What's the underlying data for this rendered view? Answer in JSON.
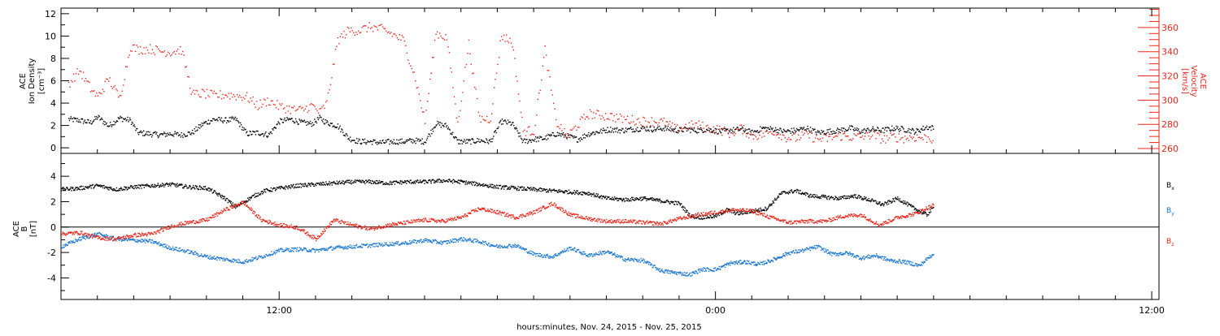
{
  "x_axis": {
    "label": "hours:minutes, Nov. 24, 2015 - Nov. 25, 2015",
    "ticks": [
      {
        "hour": 12,
        "label": "12:00"
      },
      {
        "hour": 24,
        "label": "0:00"
      },
      {
        "hour": 36,
        "label": "12:00"
      }
    ],
    "range_hours": [
      6,
      36.2
    ]
  },
  "colors": {
    "black": "#000000",
    "red": "#e8261a",
    "blue": "#1874cd"
  },
  "chart_data": [
    {
      "type": "scatter",
      "panel": "top",
      "left_axis": {
        "label_lines": [
          "ACE",
          "Ion Density",
          "[cm⁻³]"
        ],
        "ylim": [
          -0.5,
          12.5
        ],
        "ticks": [
          0,
          2,
          4,
          6,
          8,
          10,
          12
        ]
      },
      "right_axis": {
        "label_lines": [
          "ACE",
          "Velocity",
          "[km/s]"
        ],
        "ylim": [
          256,
          376
        ],
        "ticks": [
          260,
          280,
          300,
          320,
          340,
          360
        ]
      },
      "series": [
        {
          "key": "density",
          "axis": "left",
          "color": "#000000",
          "x_hours": [
            6.2,
            6.5,
            6.8,
            7.0,
            7.3,
            7.6,
            7.9,
            8.1,
            8.4,
            8.7,
            9.0,
            9.3,
            9.6,
            9.9,
            10.2,
            10.5,
            10.8,
            11.1,
            11.4,
            11.7,
            12.0,
            12.3,
            12.6,
            12.9,
            13.1,
            13.3,
            13.6,
            13.9,
            14.2,
            14.5,
            14.8,
            15.1,
            15.4,
            15.7,
            16.0,
            16.3,
            16.6,
            16.9,
            17.2,
            17.5,
            17.8,
            18.1,
            18.4,
            18.7,
            19.0,
            19.3,
            19.6,
            19.9,
            20.2,
            20.5,
            20.8,
            21.1,
            21.4,
            21.7,
            22.0,
            22.3,
            22.6,
            22.9,
            23.2,
            23.5,
            23.8,
            24.1,
            24.4,
            24.7,
            25.0,
            25.3,
            25.6,
            25.9,
            26.2,
            26.5,
            26.8,
            27.1,
            27.4,
            27.7,
            28.0,
            28.3,
            28.6,
            28.9,
            29.2,
            29.5,
            29.8,
            30.0
          ],
          "values": [
            2.6,
            2.5,
            2.3,
            2.8,
            2.0,
            2.7,
            2.5,
            1.4,
            1.3,
            1.2,
            1.3,
            1.2,
            1.4,
            2.2,
            2.6,
            2.5,
            2.6,
            1.3,
            1.4,
            1.2,
            2.4,
            2.6,
            2.3,
            2.2,
            2.7,
            2.3,
            2.0,
            0.9,
            0.6,
            0.6,
            0.5,
            0.6,
            0.6,
            0.7,
            0.6,
            2.2,
            2.0,
            0.6,
            0.6,
            0.7,
            0.6,
            2.4,
            2.2,
            0.6,
            0.8,
            0.9,
            1.3,
            1.1,
            0.8,
            1.3,
            1.5,
            1.7,
            1.6,
            1.7,
            1.8,
            1.7,
            1.8,
            1.6,
            1.7,
            1.6,
            1.7,
            1.5,
            1.6,
            1.7,
            1.4,
            1.8,
            1.7,
            1.5,
            1.6,
            1.8,
            1.4,
            1.5,
            1.6,
            1.8,
            1.5,
            1.7,
            1.6,
            1.8,
            1.7,
            1.5,
            1.9,
            1.8
          ]
        },
        {
          "key": "velocity",
          "axis": "right",
          "color": "#e8261a",
          "x_hours": [
            6.2,
            6.5,
            6.8,
            7.0,
            7.3,
            7.6,
            7.9,
            8.1,
            8.4,
            8.7,
            9.0,
            9.3,
            9.6,
            9.9,
            10.2,
            10.5,
            10.8,
            11.1,
            11.4,
            11.7,
            12.0,
            12.3,
            12.6,
            12.9,
            13.1,
            13.3,
            13.6,
            13.9,
            14.2,
            14.5,
            14.8,
            15.1,
            15.4,
            15.7,
            16.0,
            16.3,
            16.6,
            16.9,
            17.2,
            17.5,
            17.8,
            18.1,
            18.4,
            18.7,
            19.0,
            19.3,
            19.6,
            19.9,
            20.2,
            20.5,
            20.8,
            21.1,
            21.4,
            21.7,
            22.0,
            22.3,
            22.6,
            22.9,
            23.2,
            23.5,
            23.8,
            24.1,
            24.4,
            24.7,
            25.0,
            25.3,
            25.6,
            25.9,
            26.2,
            26.5,
            26.8,
            27.1,
            27.4,
            27.7,
            28.0,
            28.3,
            28.6,
            28.9,
            29.2,
            29.5,
            29.8,
            30.0
          ],
          "values": [
            314,
            325,
            310,
            303,
            318,
            302,
            345,
            342,
            343,
            341,
            340,
            342,
            305,
            306,
            304,
            305,
            304,
            303,
            296,
            300,
            295,
            293,
            292,
            296,
            290,
            298,
            350,
            358,
            358,
            361,
            359,
            355,
            350,
            322,
            283,
            356,
            352,
            280,
            347,
            285,
            285,
            354,
            348,
            275,
            275,
            342,
            283,
            270,
            280,
            289,
            288,
            287,
            285,
            284,
            283,
            283,
            282,
            276,
            279,
            280,
            277,
            276,
            273,
            277,
            271,
            272,
            275,
            270,
            269,
            272,
            268,
            269,
            271,
            270,
            270,
            272,
            268,
            270,
            269,
            270,
            269,
            268
          ]
        }
      ]
    },
    {
      "type": "scatter",
      "panel": "bottom",
      "left_axis": {
        "label_lines": [
          "ACE",
          "B",
          "[nT]"
        ],
        "ylim": [
          -5.7,
          5.8
        ],
        "ticks": [
          -4,
          -2,
          0,
          2,
          4
        ]
      },
      "legend": [
        "Bx",
        "By",
        "Bz"
      ],
      "series": [
        {
          "key": "bx",
          "name": "Bx",
          "color": "#000000",
          "x_hours": [
            6.0,
            6.5,
            7.0,
            7.5,
            8.0,
            8.5,
            9.0,
            9.5,
            10.0,
            10.5,
            10.8,
            11.0,
            11.3,
            11.6,
            12.0,
            12.5,
            13.0,
            13.5,
            14.0,
            14.5,
            15.0,
            15.5,
            16.0,
            16.5,
            17.0,
            17.5,
            18.0,
            18.5,
            19.0,
            19.5,
            20.0,
            20.5,
            21.0,
            21.5,
            22.0,
            22.5,
            23.0,
            23.3,
            23.6,
            24.0,
            24.3,
            24.6,
            25.0,
            25.4,
            25.8,
            26.2,
            26.6,
            27.0,
            27.4,
            27.8,
            28.2,
            28.6,
            29.0,
            29.4,
            29.8,
            30.0
          ],
          "values": [
            3.0,
            3.1,
            3.3,
            3.0,
            3.2,
            3.3,
            3.4,
            3.2,
            3.1,
            2.3,
            1.6,
            2.0,
            2.5,
            2.9,
            3.1,
            3.3,
            3.4,
            3.5,
            3.6,
            3.6,
            3.5,
            3.6,
            3.6,
            3.7,
            3.6,
            3.4,
            3.2,
            3.1,
            3.0,
            2.9,
            2.8,
            2.7,
            2.3,
            2.2,
            2.3,
            2.1,
            1.9,
            0.9,
            0.8,
            0.9,
            1.4,
            1.1,
            1.3,
            1.5,
            2.7,
            2.9,
            2.5,
            2.4,
            2.3,
            2.5,
            2.2,
            1.8,
            2.3,
            1.6,
            1.0,
            1.6
          ]
        },
        {
          "key": "by",
          "name": "By",
          "color": "#1874cd",
          "x_hours": [
            6.0,
            6.5,
            7.0,
            7.5,
            8.0,
            8.5,
            9.0,
            9.5,
            10.0,
            10.5,
            11.0,
            11.5,
            12.0,
            12.5,
            13.0,
            13.5,
            14.0,
            14.5,
            15.0,
            15.5,
            16.0,
            16.5,
            17.0,
            17.5,
            18.0,
            18.5,
            19.0,
            19.5,
            20.0,
            20.5,
            21.0,
            21.5,
            22.0,
            22.5,
            23.0,
            23.3,
            23.6,
            24.0,
            24.4,
            24.8,
            25.2,
            25.6,
            26.0,
            26.4,
            26.8,
            27.2,
            27.6,
            28.0,
            28.4,
            28.8,
            29.2,
            29.6,
            30.0
          ],
          "values": [
            -1.5,
            -0.9,
            -0.5,
            -0.9,
            -1.0,
            -1.1,
            -1.6,
            -1.9,
            -2.3,
            -2.5,
            -2.7,
            -2.3,
            -1.8,
            -1.7,
            -1.8,
            -1.6,
            -1.5,
            -1.4,
            -1.3,
            -1.2,
            -1.0,
            -1.2,
            -0.9,
            -1.1,
            -1.5,
            -1.4,
            -2.1,
            -2.3,
            -1.6,
            -2.2,
            -1.9,
            -2.5,
            -2.6,
            -3.4,
            -3.6,
            -3.7,
            -3.3,
            -3.3,
            -2.8,
            -2.7,
            -2.9,
            -2.5,
            -2.0,
            -1.8,
            -1.5,
            -2.1,
            -2.0,
            -2.4,
            -2.2,
            -2.6,
            -2.7,
            -3.0,
            -2.0
          ]
        },
        {
          "key": "bz",
          "name": "Bz",
          "color": "#e8261a",
          "x_hours": [
            6.0,
            6.5,
            7.0,
            7.5,
            8.0,
            8.5,
            9.0,
            9.5,
            10.0,
            10.5,
            11.0,
            11.5,
            12.0,
            12.5,
            13.0,
            13.5,
            14.0,
            14.5,
            15.0,
            15.5,
            16.0,
            16.5,
            17.0,
            17.5,
            18.0,
            18.5,
            19.0,
            19.5,
            20.0,
            20.5,
            21.0,
            21.5,
            22.0,
            22.5,
            23.0,
            23.5,
            24.0,
            24.5,
            25.0,
            25.5,
            26.0,
            26.5,
            27.0,
            27.5,
            28.0,
            28.5,
            29.0,
            29.5,
            30.0
          ],
          "values": [
            -0.5,
            -0.4,
            -0.8,
            -0.9,
            -0.6,
            -0.5,
            0.1,
            0.4,
            0.6,
            1.4,
            2.0,
            0.6,
            0.2,
            0.0,
            -0.9,
            0.6,
            0.2,
            -0.1,
            0.2,
            0.4,
            0.6,
            0.5,
            0.8,
            1.5,
            1.2,
            0.8,
            1.2,
            1.9,
            1.0,
            0.7,
            0.5,
            0.5,
            0.4,
            0.3,
            0.7,
            1.0,
            1.2,
            1.4,
            1.3,
            0.8,
            0.4,
            0.5,
            0.5,
            0.9,
            1.0,
            0.2,
            0.8,
            1.1,
            1.8
          ]
        }
      ]
    }
  ]
}
